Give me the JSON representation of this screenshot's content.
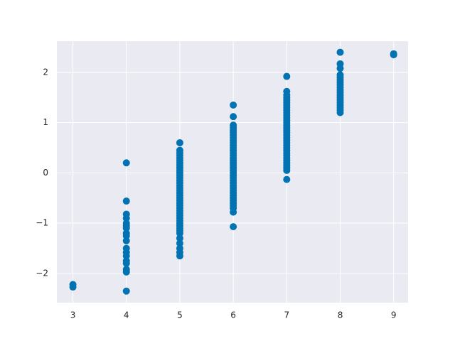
{
  "chart_data": {
    "type": "scatter",
    "color": "#0173b2",
    "grid": true,
    "x": [
      3,
      3,
      4,
      4,
      4,
      4,
      4,
      4,
      4,
      4,
      4,
      4,
      4,
      4,
      4,
      4,
      4,
      4,
      4,
      4,
      5,
      5,
      5,
      5,
      5,
      5,
      5,
      5,
      5,
      5,
      5,
      5,
      5,
      5,
      5,
      5,
      5,
      5,
      5,
      5,
      5,
      5,
      5,
      5,
      5,
      5,
      5,
      5,
      5,
      5,
      5,
      5,
      5,
      5,
      5,
      5,
      5,
      5,
      5,
      5,
      6,
      6,
      6,
      6,
      6,
      6,
      6,
      6,
      6,
      6,
      6,
      6,
      6,
      6,
      6,
      6,
      6,
      6,
      6,
      6,
      6,
      6,
      6,
      6,
      6,
      6,
      6,
      6,
      6,
      6,
      6,
      6,
      6,
      6,
      6,
      6,
      6,
      6,
      7,
      7,
      7,
      7,
      7,
      7,
      7,
      7,
      7,
      7,
      7,
      7,
      7,
      7,
      7,
      7,
      7,
      7,
      7,
      7,
      7,
      7,
      7,
      7,
      7,
      7,
      7,
      7,
      7,
      7,
      7,
      7,
      7,
      7,
      8,
      8,
      8,
      8,
      8,
      8,
      8,
      8,
      8,
      8,
      8,
      8,
      8,
      8,
      8,
      8,
      8,
      8,
      8,
      9,
      9
    ],
    "values": [
      -2.22,
      -2.27,
      0.2,
      -0.56,
      -0.82,
      -0.9,
      -1.0,
      -1.05,
      -1.1,
      -1.2,
      -1.25,
      -1.35,
      -1.5,
      -1.58,
      -1.65,
      -1.75,
      -1.8,
      -1.92,
      -1.97,
      -2.35,
      0.6,
      0.45,
      0.4,
      0.35,
      0.3,
      0.25,
      0.2,
      0.15,
      0.1,
      0.05,
      0,
      -0.05,
      -0.1,
      -0.15,
      -0.2,
      -0.25,
      -0.3,
      -0.35,
      -0.4,
      -0.45,
      -0.5,
      -0.55,
      -0.6,
      -0.65,
      -0.7,
      -0.75,
      -0.8,
      -0.85,
      -0.9,
      -0.95,
      -1.0,
      -1.05,
      -1.1,
      -1.15,
      -1.2,
      -1.3,
      -1.4,
      -1.5,
      -1.58,
      -1.65,
      1.35,
      1.12,
      0.95,
      0.9,
      0.85,
      0.8,
      0.75,
      0.7,
      0.65,
      0.6,
      0.55,
      0.5,
      0.45,
      0.4,
      0.35,
      0.3,
      0.25,
      0.2,
      0.15,
      0.1,
      0.05,
      0,
      -0.05,
      -0.1,
      -0.15,
      -0.2,
      -0.25,
      -0.3,
      -0.35,
      -0.4,
      -0.45,
      -0.5,
      -0.55,
      -0.6,
      -0.65,
      -0.7,
      -0.78,
      -1.07,
      1.92,
      1.62,
      1.55,
      1.5,
      1.45,
      1.4,
      1.35,
      1.3,
      1.25,
      1.2,
      1.15,
      1.1,
      1.05,
      1.0,
      0.95,
      0.9,
      0.85,
      0.8,
      0.75,
      0.7,
      0.65,
      0.6,
      0.55,
      0.5,
      0.45,
      0.4,
      0.35,
      0.3,
      0.25,
      0.2,
      0.15,
      0.1,
      0.05,
      -0.13,
      2.4,
      2.17,
      2.08,
      1.95,
      1.9,
      1.85,
      1.8,
      1.75,
      1.7,
      1.65,
      1.6,
      1.55,
      1.5,
      1.45,
      1.4,
      1.35,
      1.3,
      1.25,
      1.2,
      2.37,
      2.35
    ],
    "xlim": [
      2.7,
      9.27
    ],
    "ylim": [
      -2.58,
      2.62
    ],
    "xticks": [
      3,
      4,
      5,
      6,
      7,
      8,
      9
    ],
    "yticks": [
      {
        "value": -2,
        "label": "−2"
      },
      {
        "value": -1,
        "label": "−1"
      },
      0,
      1,
      2
    ]
  }
}
